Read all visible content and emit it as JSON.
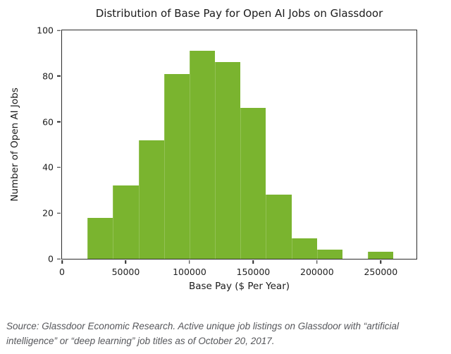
{
  "chart_data": {
    "type": "bar",
    "subtype": "histogram",
    "title": "Distribution of Base Pay for Open AI Jobs on Glassdoor",
    "xlabel": "Base Pay ($ Per Year)",
    "ylabel": "Number of Open AI Jobs",
    "bin_width": 20000,
    "bin_starts": [
      20000,
      40000,
      60000,
      80000,
      100000,
      120000,
      140000,
      160000,
      180000,
      200000,
      220000,
      240000
    ],
    "counts": [
      18,
      32,
      52,
      81,
      91,
      86,
      66,
      28,
      9,
      4,
      0,
      3
    ],
    "x_ticks": [
      0,
      50000,
      100000,
      150000,
      200000,
      250000
    ],
    "x_tick_labels": [
      "0",
      "50000",
      "100000",
      "150000",
      "200000",
      "250000"
    ],
    "y_ticks": [
      0,
      20,
      40,
      60,
      80,
      100
    ],
    "y_tick_labels": [
      "0",
      "20",
      "40",
      "60",
      "80",
      "100"
    ],
    "xlim": [
      0,
      278000
    ],
    "ylim": [
      0,
      100
    ],
    "grid": false,
    "legend": null,
    "bar_color": "#7ab42f",
    "spine_color": "#2b2b2b"
  },
  "caption": {
    "lines": [
      "Source: Glassdoor Economic Research. Active unique job listings on Glassdoor with “artificial",
      "intelligence” or “deep learning” job titles as of October 20, 2017."
    ]
  }
}
